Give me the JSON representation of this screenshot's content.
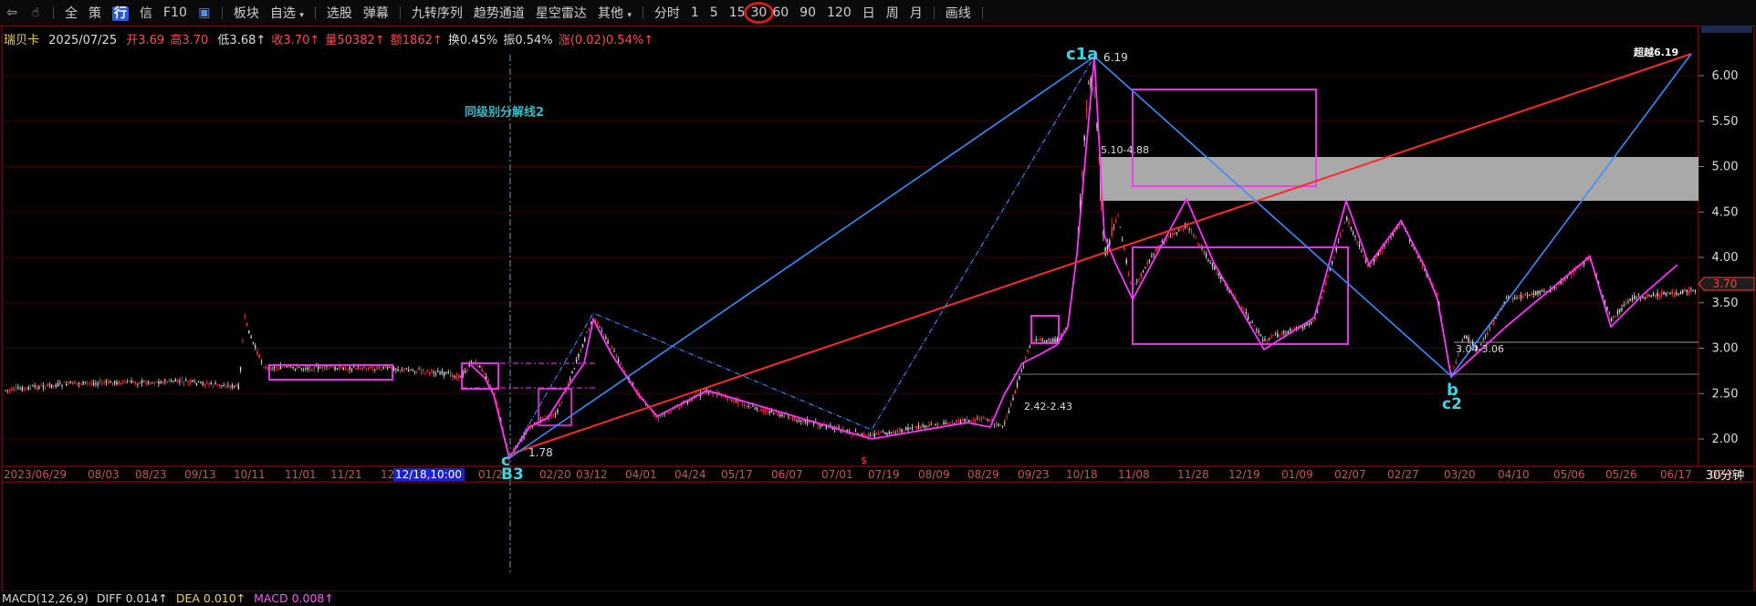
{
  "toolbar": {
    "nav_icons": [
      "back-arrow-icon",
      "hand-pointer-icon"
    ],
    "items": [
      "全",
      "策",
      "行",
      "信",
      "F10",
      "板块",
      "自选",
      "选股",
      "弹幕",
      "九转序列",
      "趋势通道",
      "星空雷达",
      "其他",
      "分时",
      "1",
      "5",
      "15",
      "30",
      "60",
      "90",
      "120",
      "日",
      "周",
      "月",
      "画线"
    ],
    "active_item": "行",
    "highlighted_period": "30"
  },
  "info": {
    "name": "瑞贝卡",
    "date": "2025/07/25",
    "open": "开3.69",
    "high": "高3.70",
    "low": "低3.68↑",
    "close": "收3.70↑",
    "volume": "量50382↑",
    "amount": "额1862↑",
    "turnover": "换0.45%",
    "amplitude": "振0.54%",
    "change": "涨(0.02)0.54%↑"
  },
  "chart": {
    "current_price": "3.70",
    "y_ticks": [
      "6.00",
      "5.50",
      "5.00",
      "4.50",
      "4.00",
      "3.50",
      "3.00",
      "2.50",
      "2.00"
    ],
    "x_ticks": [
      "2023/06/29",
      "08/03",
      "08/23",
      "09/13",
      "10/11",
      "11/01",
      "11/21",
      "12",
      "12/18,10:00",
      "01/2",
      "02/20",
      "03/12",
      "04/01",
      "04/24",
      "05/17",
      "06/07",
      "07/01",
      "07/19",
      "08/09",
      "08/29",
      "09/23",
      "10/18",
      "11/08",
      "11/28",
      "12/19",
      "01/09",
      "02/07",
      "02/27",
      "03/20",
      "04/10",
      "05/06",
      "05/26",
      "06/17",
      "07/07"
    ],
    "period_label": "30分钟",
    "annotations": {
      "c1a": "c1a",
      "peak_value": "6.19",
      "gap_zone": "5.10-4.88",
      "same_level_line": "同级别分解线2",
      "target": "超越6.19",
      "support_1": "2.42-2.43",
      "support_2": "3.04-3.06",
      "low_value": "1.78",
      "c": "c",
      "b3": "B3",
      "b": "b",
      "c2": "c2",
      "marker": "$"
    },
    "colors": {
      "up": "#ff3b3b",
      "down": "#e0e0e0",
      "zs": "#ff33ff",
      "blue": "#3b8cff",
      "trend": "#ff2a2a",
      "cyan": "#37d7e6"
    }
  },
  "macd": {
    "label": "MACD(12,26,9)",
    "diff": "DIFF 0.014↑",
    "dea": "DEA 0.010↑",
    "macd": "MACD 0.008↑"
  }
}
